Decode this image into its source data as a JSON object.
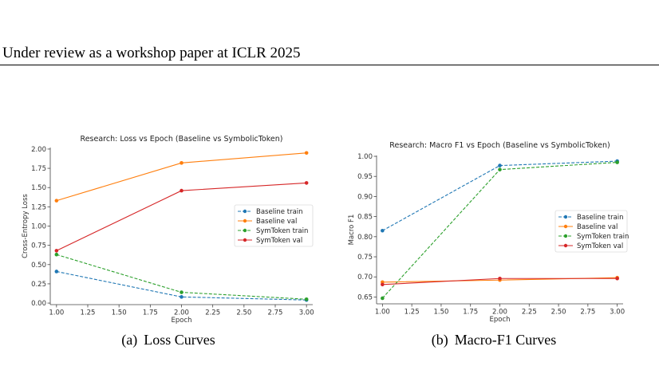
{
  "header": {
    "running_head": "Under review as a workshop paper at ICLR 2025"
  },
  "figures": [
    {
      "caption_number": "(a)",
      "caption_text": "Loss Curves"
    },
    {
      "caption_number": "(b)",
      "caption_text": "Macro-F1 Curves"
    }
  ],
  "chart_data": [
    {
      "type": "line",
      "title": "Research: Loss vs Epoch (Baseline vs SymbolicToken)",
      "xlabel": "Epoch",
      "ylabel": "Cross-Entropy Loss",
      "xlim": [
        0.95,
        3.05
      ],
      "ylim": [
        -0.02,
        2.02
      ],
      "xticks": [
        1.0,
        1.25,
        1.5,
        1.75,
        2.0,
        2.25,
        2.5,
        2.75,
        3.0
      ],
      "xtick_labels": [
        "1.00",
        "1.25",
        "1.50",
        "1.75",
        "2.00",
        "2.25",
        "2.50",
        "2.75",
        "3.00"
      ],
      "yticks": [
        0.0,
        0.25,
        0.5,
        0.75,
        1.0,
        1.25,
        1.5,
        1.75,
        2.0
      ],
      "ytick_labels": [
        "0.00",
        "0.25",
        "0.50",
        "0.75",
        "1.00",
        "1.25",
        "1.50",
        "1.75",
        "2.00"
      ],
      "legend_position": "center-right",
      "x": [
        1,
        2,
        3
      ],
      "series": [
        {
          "name": "Baseline train",
          "values": [
            0.41,
            0.08,
            0.04
          ],
          "color": "#1f77b4",
          "style": "dashed"
        },
        {
          "name": "Baseline val",
          "values": [
            1.33,
            1.82,
            1.95
          ],
          "color": "#ff7f0e",
          "style": "solid"
        },
        {
          "name": "SymToken train",
          "values": [
            0.63,
            0.14,
            0.05
          ],
          "color": "#2ca02c",
          "style": "dashed"
        },
        {
          "name": "SymToken val",
          "values": [
            0.68,
            1.46,
            1.56
          ],
          "color": "#d62728",
          "style": "solid"
        }
      ]
    },
    {
      "type": "line",
      "title": "Research: Macro F1 vs Epoch (Baseline vs SymbolicToken)",
      "xlabel": "Epoch",
      "ylabel": "Macro F1",
      "xlim": [
        0.95,
        3.05
      ],
      "ylim": [
        0.633,
        1.002
      ],
      "xticks": [
        1.0,
        1.25,
        1.5,
        1.75,
        2.0,
        2.25,
        2.5,
        2.75,
        3.0
      ],
      "xtick_labels": [
        "1.00",
        "1.25",
        "1.50",
        "1.75",
        "2.00",
        "2.25",
        "2.50",
        "2.75",
        "3.00"
      ],
      "yticks": [
        0.65,
        0.7,
        0.75,
        0.8,
        0.85,
        0.9,
        0.95,
        1.0
      ],
      "ytick_labels": [
        "0.65",
        "0.70",
        "0.75",
        "0.80",
        "0.85",
        "0.90",
        "0.95",
        "1.00"
      ],
      "legend_position": "center-right",
      "x": [
        1,
        2,
        3
      ],
      "series": [
        {
          "name": "Baseline train",
          "values": [
            0.815,
            0.977,
            0.988
          ],
          "color": "#1f77b4",
          "style": "dashed"
        },
        {
          "name": "Baseline val",
          "values": [
            0.687,
            0.692,
            0.698
          ],
          "color": "#ff7f0e",
          "style": "solid"
        },
        {
          "name": "SymToken train",
          "values": [
            0.647,
            0.967,
            0.985
          ],
          "color": "#2ca02c",
          "style": "dashed"
        },
        {
          "name": "SymToken val",
          "values": [
            0.681,
            0.696,
            0.696
          ],
          "color": "#d62728",
          "style": "solid"
        }
      ]
    }
  ]
}
